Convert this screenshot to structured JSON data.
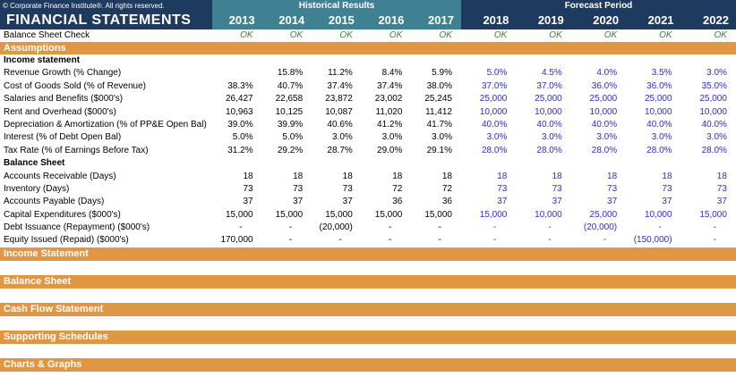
{
  "window": {
    "copyright": "© Corporate Finance Institute®. All rights reserved.",
    "title": "FINANCIAL STATEMENTS"
  },
  "periods": {
    "historical_label": "Historical Results",
    "forecast_label": "Forecast Period",
    "historical_years": [
      "2013",
      "2014",
      "2015",
      "2016",
      "2017"
    ],
    "forecast_years": [
      "2018",
      "2019",
      "2020",
      "2021",
      "2022"
    ]
  },
  "balance_sheet_check": {
    "label": "Balance Sheet Check",
    "values": [
      "OK",
      "OK",
      "OK",
      "OK",
      "OK",
      "OK",
      "OK",
      "OK",
      "OK",
      "OK"
    ]
  },
  "assumptions": {
    "title": "Assumptions",
    "groups": [
      {
        "label": "Income statement",
        "rows": [
          {
            "label": "Revenue Growth (% Change)",
            "historical": [
              "",
              "15.8%",
              "11.2%",
              "8.4%",
              "5.9%"
            ],
            "forecast": [
              "5.0%",
              "4.5%",
              "4.0%",
              "3.5%",
              "3.0%"
            ]
          },
          {
            "label": "Cost of Goods Sold (% of Revenue)",
            "historical": [
              "38.3%",
              "40.7%",
              "37.4%",
              "37.4%",
              "38.0%"
            ],
            "forecast": [
              "37.0%",
              "37.0%",
              "36.0%",
              "36.0%",
              "35.0%"
            ]
          },
          {
            "label": "Salaries and Benefits ($000's)",
            "historical": [
              "26,427",
              "22,658",
              "23,872",
              "23,002",
              "25,245"
            ],
            "forecast": [
              "25,000",
              "25,000",
              "25,000",
              "25,000",
              "25,000"
            ]
          },
          {
            "label": "Rent and Overhead ($000's)",
            "historical": [
              "10,963",
              "10,125",
              "10,087",
              "11,020",
              "11,412"
            ],
            "forecast": [
              "10,000",
              "10,000",
              "10,000",
              "10,000",
              "10,000"
            ]
          },
          {
            "label": "Depreciation & Amortization (% of PP&E Open Bal)",
            "historical": [
              "39.0%",
              "39.9%",
              "40.6%",
              "41.2%",
              "41.7%"
            ],
            "forecast": [
              "40.0%",
              "40.0%",
              "40.0%",
              "40.0%",
              "40.0%"
            ]
          },
          {
            "label": "Interest (% of Debt Open Bal)",
            "historical": [
              "5.0%",
              "5.0%",
              "3.0%",
              "3.0%",
              "3.0%"
            ],
            "forecast": [
              "3.0%",
              "3.0%",
              "3.0%",
              "3.0%",
              "3.0%"
            ]
          },
          {
            "label": "Tax Rate (% of Earnings Before Tax)",
            "historical": [
              "31.2%",
              "29.2%",
              "28.7%",
              "29.0%",
              "29.1%"
            ],
            "forecast": [
              "28.0%",
              "28.0%",
              "28.0%",
              "28.0%",
              "28.0%"
            ]
          }
        ]
      },
      {
        "label": "Balance Sheet",
        "rows": [
          {
            "label": "Accounts Receivable (Days)",
            "historical": [
              "18",
              "18",
              "18",
              "18",
              "18"
            ],
            "forecast": [
              "18",
              "18",
              "18",
              "18",
              "18"
            ]
          },
          {
            "label": "Inventory (Days)",
            "historical": [
              "73",
              "73",
              "73",
              "72",
              "72"
            ],
            "forecast": [
              "73",
              "73",
              "73",
              "73",
              "73"
            ]
          },
          {
            "label": "Accounts Payable (Days)",
            "historical": [
              "37",
              "37",
              "37",
              "36",
              "36"
            ],
            "forecast": [
              "37",
              "37",
              "37",
              "37",
              "37"
            ]
          },
          {
            "label": "Capital Expenditures ($000's)",
            "historical": [
              "15,000",
              "15,000",
              "15,000",
              "15,000",
              "15,000"
            ],
            "forecast": [
              "15,000",
              "10,000",
              "25,000",
              "10,000",
              "15,000"
            ]
          },
          {
            "label": "Debt Issuance (Repayment) ($000's)",
            "historical": [
              "-",
              "-",
              "(20,000)",
              "-",
              "-"
            ],
            "forecast": [
              "-",
              "-",
              "(20,000)",
              "-",
              "-"
            ]
          },
          {
            "label": "Equity Issued (Repaid) ($000's)",
            "historical": [
              "170,000",
              "-",
              "-",
              "-",
              "-"
            ],
            "forecast": [
              "-",
              "-",
              "-",
              "(150,000)",
              "-"
            ]
          }
        ]
      }
    ]
  },
  "section_bars": [
    {
      "label": "Income Statement"
    },
    {
      "label": "Balance Sheet"
    },
    {
      "label": "Cash Flow Statement"
    },
    {
      "label": "Supporting Schedules"
    },
    {
      "label": "Charts & Graphs"
    }
  ],
  "colors": {
    "navy": "#1F3A5F",
    "teal": "#3F8092",
    "orange": "#E09643",
    "ok_green": "#3B7D3B",
    "forecast_blue": "#2B2BD5",
    "historical_black": "#000000"
  }
}
